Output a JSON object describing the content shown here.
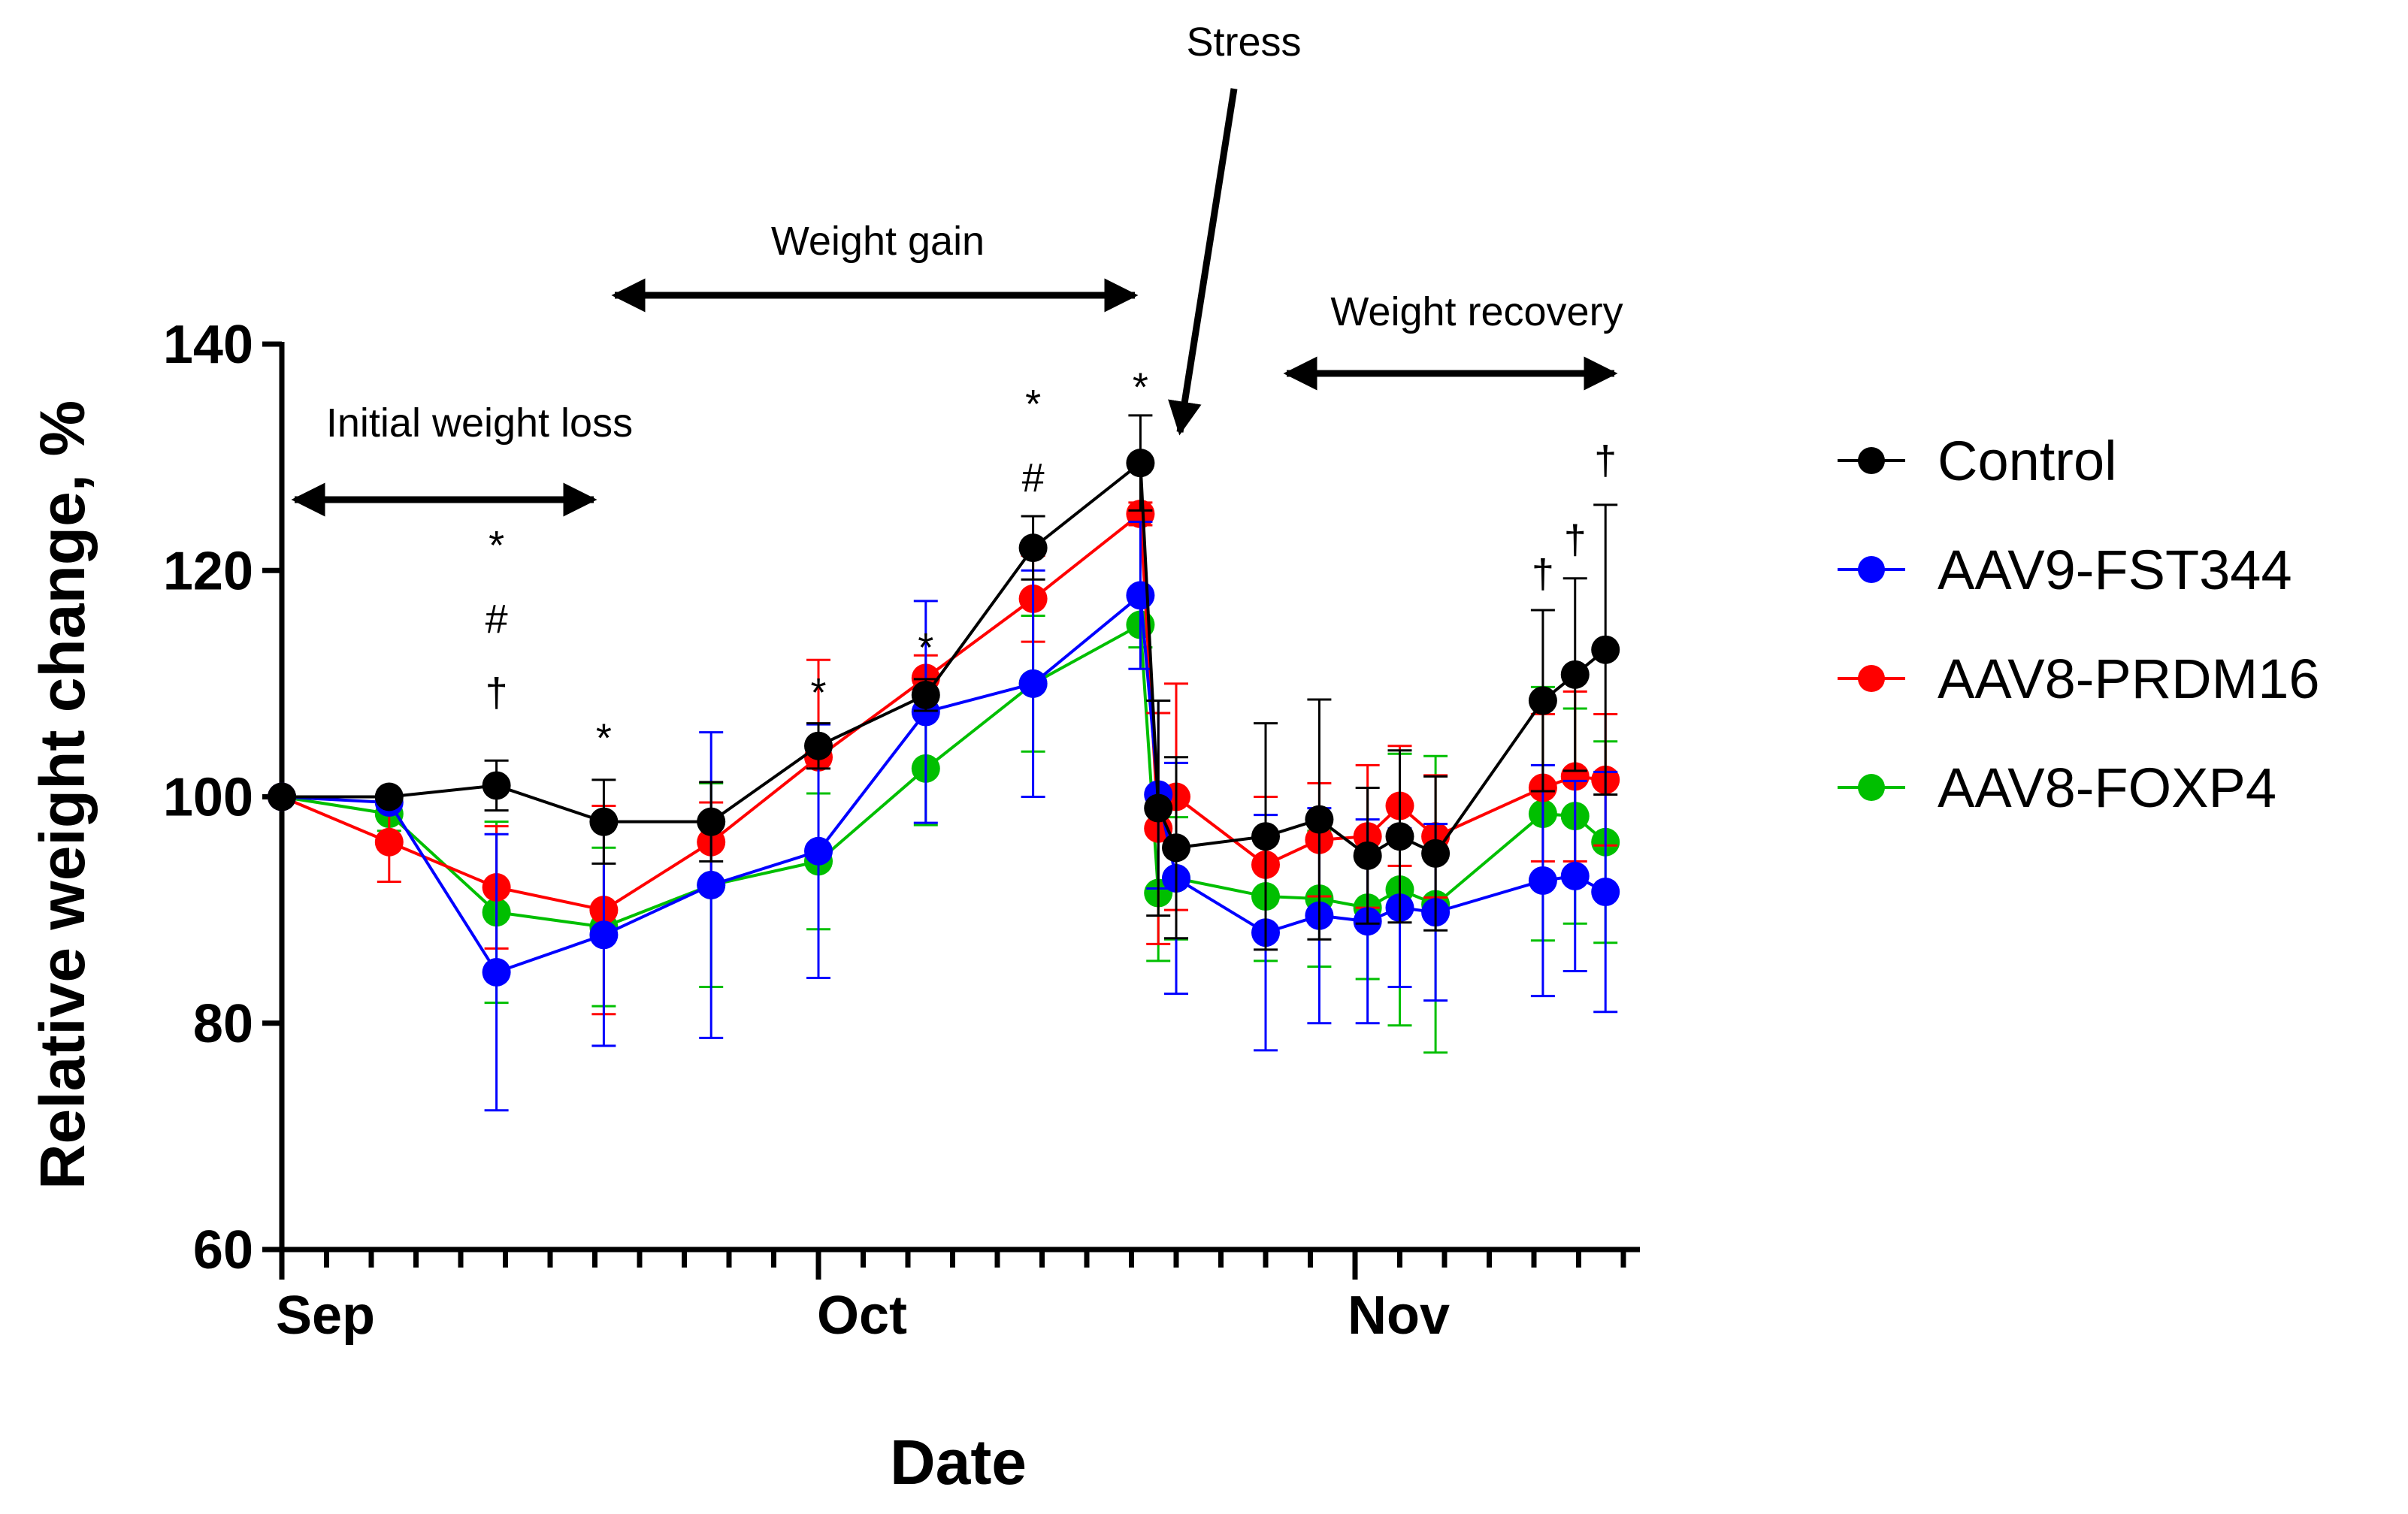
{
  "chart_data": {
    "type": "line",
    "title": "",
    "xlabel": "Date",
    "ylabel": "Relative weight change, %",
    "ylim": [
      60,
      140
    ],
    "yticks": [
      "60",
      "80",
      "100",
      "120",
      "140"
    ],
    "xlim": [
      0,
      75
    ],
    "xticks": [
      {
        "x": 0,
        "label": "Sep"
      },
      {
        "x": 30,
        "label": "Oct"
      },
      {
        "x": 60,
        "label": "Nov"
      }
    ],
    "x": [
      0,
      6,
      12,
      18,
      24,
      30,
      36,
      42,
      48,
      49,
      50,
      55,
      58,
      60.7,
      62.5,
      64.5,
      70.5,
      72.3,
      74
    ],
    "series": [
      {
        "name": "Control",
        "color": "#000000",
        "values": [
          100,
          100,
          101,
          97.8,
          97.8,
          104.5,
          109,
          122,
          129.5,
          99,
          95.5,
          96.5,
          98,
          94.8,
          96.5,
          95,
          108.5,
          110.8,
          113
        ],
        "errors": [
          0,
          0.6,
          2.2,
          3.7,
          3.5,
          2,
          1.4,
          2.8,
          4.2,
          9.5,
          8,
          10,
          10.6,
          6,
          7.6,
          6.8,
          8,
          8.5,
          12.8
        ]
      },
      {
        "name": "AAV9-FST344",
        "color": "#0000ff",
        "values": [
          100,
          99.5,
          84.5,
          87.8,
          92.2,
          95.2,
          107.5,
          110,
          117.8,
          100.2,
          92.8,
          88,
          89.5,
          89,
          90.2,
          89.8,
          92.6,
          93,
          91.6
        ],
        "errors": [
          0,
          0.6,
          12.2,
          9.8,
          13.5,
          11.2,
          9.8,
          10,
          6.5,
          8.3,
          10.2,
          10.4,
          9.5,
          9,
          7,
          7.8,
          10.2,
          8.4,
          10.6
        ]
      },
      {
        "name": "AAV8-PRDM16",
        "color": "#ff0000",
        "values": [
          100,
          96,
          92,
          90,
          96,
          103.5,
          110.5,
          117.5,
          125,
          97.2,
          100,
          94,
          96.2,
          96.5,
          99.2,
          96.5,
          100.8,
          101.8,
          101.5
        ],
        "errors": [
          0,
          3.5,
          5.4,
          9.2,
          3.5,
          8.6,
          2,
          3.8,
          1,
          10.2,
          10,
          6,
          5,
          6.3,
          5.3,
          5.4,
          6.5,
          7.5,
          5.8
        ]
      },
      {
        "name": "AAV8-FOXP4",
        "color": "#00bf00",
        "values": [
          100,
          98.5,
          89.8,
          88.5,
          92.2,
          94.3,
          102.5,
          110,
          115.2,
          91.5,
          92.8,
          91.2,
          91,
          90.2,
          91.8,
          90.5,
          98.5,
          98.3,
          96
        ],
        "errors": [
          0,
          1.5,
          8,
          7,
          9,
          6,
          5,
          6,
          2,
          6,
          5.4,
          5.7,
          6,
          6.3,
          12,
          13.1,
          11.2,
          9.5,
          8.9
        ]
      }
    ],
    "legend": "right",
    "annotations": {
      "initial_loss": "Initial weight loss",
      "weight_gain": "Weight gain",
      "stress": "Stress",
      "recovery": "Weight recovery"
    },
    "significance": [
      {
        "x": 12,
        "y": 108,
        "symbols": [
          "*",
          "#",
          "†"
        ]
      },
      {
        "x": 18,
        "y": 104,
        "symbols": [
          "*"
        ]
      },
      {
        "x": 30,
        "y": 108,
        "symbols": [
          "*"
        ]
      },
      {
        "x": 36,
        "y": 112,
        "symbols": [
          "*"
        ]
      },
      {
        "x": 42,
        "y": 127,
        "symbols": [
          "*",
          "#"
        ]
      },
      {
        "x": 48,
        "y": 135,
        "symbols": [
          "*"
        ]
      },
      {
        "x": 70.5,
        "y": 118.5,
        "symbols": [
          "†"
        ]
      },
      {
        "x": 72.3,
        "y": 121.5,
        "symbols": [
          "†"
        ]
      },
      {
        "x": 74,
        "y": 128.5,
        "symbols": [
          "†"
        ]
      }
    ]
  }
}
